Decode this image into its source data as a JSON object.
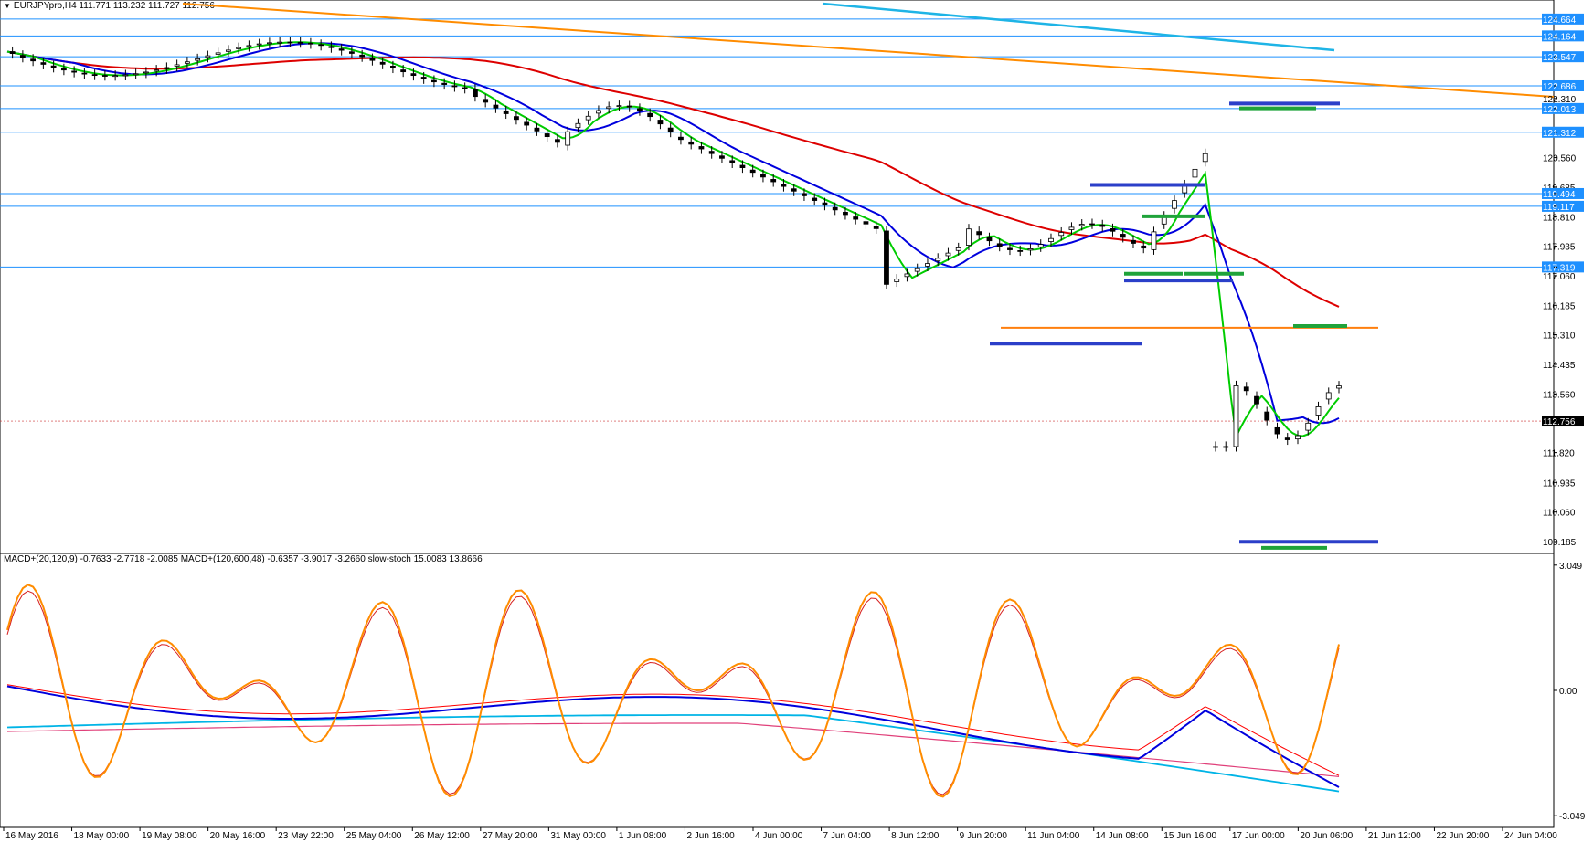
{
  "header": {
    "symbol_line": "EURJPYpro,H4  111.771 113.232 111.727 112.756"
  },
  "indicator_header": "MACD+(20,120,9) -0.7633 -2.7718 -2.0085   MACD+(120,600,48) -0.6357 -3.9017 -3.2660   slow-stoch 15.0083 13.8666",
  "price_axis": {
    "ticks": [
      "124.664",
      "124.164",
      "123.547",
      "122.686",
      "122.310",
      "122.013",
      "121.312",
      "120.560",
      "119.685",
      "119.494",
      "119.117",
      "118.810",
      "117.935",
      "117.319",
      "117.060",
      "116.185",
      "115.310",
      "114.435",
      "113.560",
      "112.756",
      "111.820",
      "110.935",
      "110.060",
      "109.185"
    ],
    "highlighted": [
      "124.664",
      "124.164",
      "123.547",
      "122.686",
      "122.013",
      "121.312",
      "119.494",
      "119.117",
      "117.319",
      "112.756"
    ],
    "current": "112.756"
  },
  "macd_axis": {
    "ticks": [
      "3.049",
      "0.00",
      "-3.049"
    ]
  },
  "time_axis": {
    "labels": [
      "16 May 2016",
      "18 May 00:00",
      "19 May 08:00",
      "20 May 16:00",
      "23 May 22:00",
      "25 May 04:00",
      "26 May 12:00",
      "27 May 20:00",
      "31 May 00:00",
      "1 Jun 08:00",
      "2 Jun 16:00",
      "4 Jun 00:00",
      "7 Jun 04:00",
      "8 Jun 12:00",
      "9 Jun 20:00",
      "11 Jun 04:00",
      "14 Jun 08:00",
      "15 Jun 16:00",
      "17 Jun 00:00",
      "20 Jun 06:00",
      "21 Jun 12:00",
      "22 Jun 20:00",
      "24 Jun 04:00"
    ]
  },
  "colors": {
    "hline": "#1e90ff",
    "blue_ma": "#0000dd",
    "green_ma": "#00cc00",
    "red_ma": "#dd0000",
    "orange_trend": "#ff8c00",
    "cyan_trend": "#1eb4e6",
    "axis_highlight": "#1e90ff",
    "current_label": "#000000",
    "zone_blue": "#2b3fc9",
    "zone_green": "#1fa33a",
    "zone_orange": "#ff7f0e",
    "stoch": "#ff8c00",
    "macd_blue": "#0000dd",
    "macd_signal": "#ff0000",
    "macd_cyan": "#00b4e6",
    "macd_pink": "#e0407a"
  }
}
